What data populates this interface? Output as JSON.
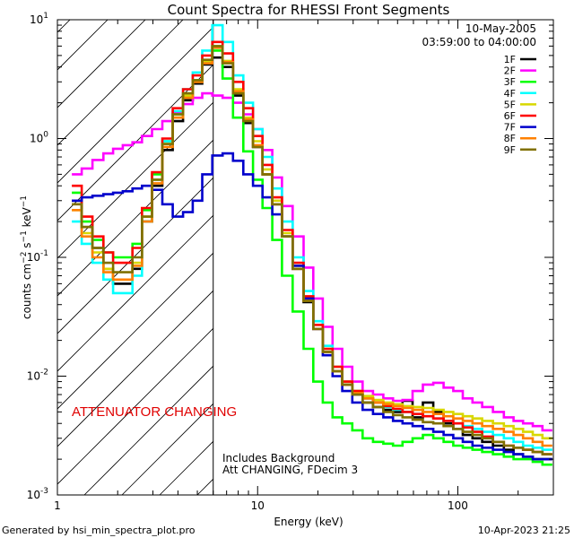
{
  "chart_data": {
    "type": "line",
    "title": "Count Spectra for RHESSI Front Segments",
    "xlabel": "Energy (keV)",
    "ylabel": "counts cm-2 s-1 keV-1",
    "xscale": "log",
    "yscale": "log",
    "xlim": [
      1,
      300
    ],
    "ylim": [
      0.001,
      10
    ],
    "x_ticks": [
      {
        "value": 1,
        "label": "1"
      },
      {
        "value": 10,
        "label": "10"
      },
      {
        "value": 100,
        "label": "100"
      }
    ],
    "y_ticks": [
      {
        "value": 0.001,
        "base": "10",
        "exp": "-3"
      },
      {
        "value": 0.01,
        "base": "10",
        "exp": "-2"
      },
      {
        "value": 0.1,
        "base": "10",
        "exp": "-1"
      },
      {
        "value": 1,
        "base": "10",
        "exp": "0"
      },
      {
        "value": 10,
        "base": "10",
        "exp": "1"
      }
    ],
    "attenuator_region": {
      "x_start": 1,
      "x_end": 6,
      "label": "ATTENUATOR CHANGING",
      "label_color": "#e00000"
    },
    "date": "10-May-2005",
    "time_range": "03:59:00 to 04:00:00",
    "notes": [
      "Includes Background",
      "Att CHANGING, FDecim 3"
    ],
    "footer_left": "Generated by hsi_min_spectra_plot.pro",
    "footer_right": "10-Apr-2023 21:25",
    "energy": [
      1.25,
      1.4,
      1.6,
      1.8,
      2.0,
      2.25,
      2.5,
      2.8,
      3.15,
      3.55,
      4.0,
      4.5,
      5.0,
      5.6,
      6.3,
      7.1,
      8.0,
      9.0,
      10.0,
      11.2,
      12.5,
      14.0,
      16.0,
      18.0,
      20.0,
      22.4,
      25.0,
      28.0,
      31.5,
      35.5,
      40.0,
      45.0,
      50.0,
      56.0,
      63.0,
      71.0,
      80.0,
      90.0,
      100.0,
      112.0,
      125.0,
      140.0,
      160.0,
      180.0,
      200.0,
      224.0,
      250.0,
      280.0
    ],
    "series": [
      {
        "name": "1F",
        "color": "#000000",
        "values": [
          0.3,
          0.18,
          0.12,
          0.08,
          0.06,
          0.06,
          0.08,
          0.2,
          0.4,
          0.8,
          1.4,
          2.1,
          2.9,
          4.2,
          4.8,
          4.0,
          2.3,
          1.35,
          0.85,
          0.5,
          0.28,
          0.15,
          0.08,
          0.042,
          0.025,
          0.016,
          0.011,
          0.0085,
          0.007,
          0.006,
          0.0055,
          0.0052,
          0.005,
          0.0062,
          0.0045,
          0.006,
          0.005,
          0.004,
          0.0036,
          0.0032,
          0.003,
          0.0028,
          0.0026,
          0.0024,
          0.0022,
          0.0021,
          0.002,
          0.002
        ]
      },
      {
        "name": "2F",
        "color": "#ff00ff",
        "values": [
          0.5,
          0.56,
          0.66,
          0.75,
          0.82,
          0.88,
          0.93,
          1.05,
          1.2,
          1.4,
          1.65,
          1.95,
          2.2,
          2.4,
          2.3,
          2.2,
          2.0,
          1.6,
          1.2,
          0.8,
          0.47,
          0.27,
          0.15,
          0.082,
          0.045,
          0.026,
          0.017,
          0.012,
          0.009,
          0.0075,
          0.007,
          0.0065,
          0.0062,
          0.0063,
          0.0075,
          0.0085,
          0.0088,
          0.008,
          0.0075,
          0.0065,
          0.006,
          0.0055,
          0.005,
          0.0045,
          0.0042,
          0.004,
          0.0038,
          0.0035
        ]
      },
      {
        "name": "3F",
        "color": "#00ff00",
        "values": [
          0.35,
          0.2,
          0.14,
          0.11,
          0.1,
          0.1,
          0.13,
          0.25,
          0.5,
          0.95,
          1.6,
          2.3,
          3.1,
          4.5,
          5.5,
          3.2,
          1.5,
          0.78,
          0.45,
          0.26,
          0.14,
          0.07,
          0.035,
          0.017,
          0.009,
          0.006,
          0.0045,
          0.004,
          0.0035,
          0.003,
          0.0028,
          0.0027,
          0.0026,
          0.0028,
          0.003,
          0.0032,
          0.003,
          0.0028,
          0.0026,
          0.0025,
          0.0024,
          0.0023,
          0.0022,
          0.0021,
          0.002,
          0.002,
          0.0019,
          0.0018
        ]
      },
      {
        "name": "4F",
        "color": "#00ffff",
        "values": [
          0.2,
          0.13,
          0.09,
          0.065,
          0.05,
          0.05,
          0.07,
          0.2,
          0.45,
          0.95,
          1.7,
          2.6,
          3.6,
          5.5,
          9.0,
          6.5,
          3.4,
          2.0,
          1.2,
          0.7,
          0.38,
          0.2,
          0.1,
          0.052,
          0.029,
          0.018,
          0.012,
          0.009,
          0.0075,
          0.0065,
          0.006,
          0.0055,
          0.0052,
          0.005,
          0.0048,
          0.0046,
          0.0044,
          0.0042,
          0.004,
          0.0038,
          0.0036,
          0.0034,
          0.0032,
          0.003,
          0.0028,
          0.0026,
          0.0025,
          0.0024
        ]
      },
      {
        "name": "5F",
        "color": "#d8d800",
        "values": [
          0.25,
          0.16,
          0.11,
          0.08,
          0.065,
          0.065,
          0.09,
          0.22,
          0.45,
          0.9,
          1.5,
          2.3,
          3.0,
          4.5,
          6.0,
          4.5,
          2.6,
          1.5,
          0.95,
          0.55,
          0.3,
          0.16,
          0.085,
          0.046,
          0.027,
          0.017,
          0.012,
          0.009,
          0.0075,
          0.0068,
          0.0063,
          0.006,
          0.0058,
          0.0056,
          0.0055,
          0.0054,
          0.0052,
          0.005,
          0.0048,
          0.0046,
          0.0044,
          0.0042,
          0.004,
          0.0038,
          0.0036,
          0.0034,
          0.0032,
          0.003
        ]
      },
      {
        "name": "6F",
        "color": "#ff0000",
        "values": [
          0.4,
          0.22,
          0.15,
          0.11,
          0.09,
          0.09,
          0.12,
          0.26,
          0.52,
          1.0,
          1.8,
          2.6,
          3.4,
          5.0,
          6.5,
          5.2,
          3.0,
          1.8,
          1.05,
          0.6,
          0.32,
          0.17,
          0.09,
          0.047,
          0.027,
          0.017,
          0.012,
          0.009,
          0.0075,
          0.0065,
          0.006,
          0.0056,
          0.0053,
          0.005,
          0.0048,
          0.0046,
          0.0044,
          0.0042,
          0.004,
          0.0037,
          0.0034,
          0.0031,
          0.0028,
          0.0026,
          0.0025,
          0.0024,
          0.0023,
          0.0022
        ]
      },
      {
        "name": "7F",
        "color": "#0000cc",
        "values": [
          0.3,
          0.32,
          0.33,
          0.34,
          0.35,
          0.36,
          0.38,
          0.4,
          0.37,
          0.28,
          0.22,
          0.24,
          0.3,
          0.5,
          0.72,
          0.75,
          0.65,
          0.5,
          0.4,
          0.32,
          0.23,
          0.15,
          0.085,
          0.045,
          0.025,
          0.015,
          0.01,
          0.0075,
          0.006,
          0.0052,
          0.0048,
          0.0045,
          0.0042,
          0.004,
          0.0038,
          0.0036,
          0.0034,
          0.0032,
          0.003,
          0.0028,
          0.0026,
          0.0025,
          0.0024,
          0.0023,
          0.0022,
          0.0021,
          0.002,
          0.002
        ]
      },
      {
        "name": "8F",
        "color": "#ff8000",
        "values": [
          0.25,
          0.15,
          0.1,
          0.075,
          0.065,
          0.065,
          0.085,
          0.2,
          0.42,
          0.85,
          1.5,
          2.2,
          3.0,
          4.3,
          5.8,
          4.4,
          2.5,
          1.45,
          0.88,
          0.5,
          0.28,
          0.15,
          0.08,
          0.043,
          0.025,
          0.016,
          0.011,
          0.0085,
          0.0072,
          0.0065,
          0.006,
          0.0058,
          0.0056,
          0.0054,
          0.0052,
          0.005,
          0.0048,
          0.0046,
          0.0044,
          0.0042,
          0.004,
          0.0038,
          0.0036,
          0.0034,
          0.0032,
          0.003,
          0.0028,
          0.0026
        ]
      },
      {
        "name": "9F",
        "color": "#807000",
        "values": [
          0.28,
          0.18,
          0.12,
          0.09,
          0.075,
          0.075,
          0.1,
          0.22,
          0.45,
          0.9,
          1.6,
          2.4,
          3.1,
          4.6,
          6.0,
          4.3,
          2.4,
          1.4,
          0.85,
          0.5,
          0.28,
          0.15,
          0.08,
          0.043,
          0.025,
          0.016,
          0.011,
          0.0085,
          0.007,
          0.006,
          0.0055,
          0.005,
          0.0047,
          0.0045,
          0.0043,
          0.0041,
          0.004,
          0.0038,
          0.0036,
          0.0034,
          0.0032,
          0.003,
          0.0028,
          0.0026,
          0.0025,
          0.0024,
          0.0023,
          0.0022
        ]
      }
    ]
  }
}
